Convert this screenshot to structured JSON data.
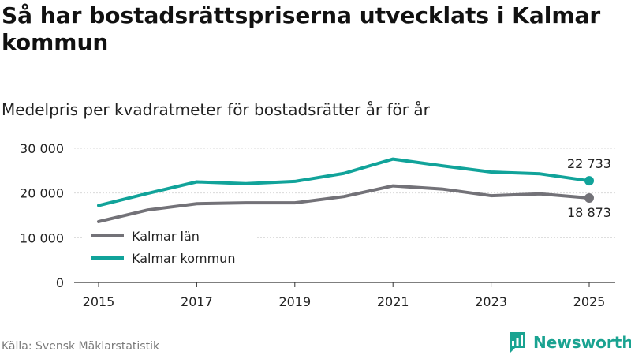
{
  "header": {
    "title": "Så har bostadsrättspriserna utvecklats i Kalmar kommun",
    "subtitle": "Medelpris per kvadratmeter för bostadsrätter år för år"
  },
  "footer": {
    "source": "Källa: Svensk Mäklarstatistik",
    "brand": "Newsworthy",
    "brand_icon": "bar-chart-speech-bubble-icon"
  },
  "colors": {
    "kalmar_lan": "#737278",
    "kalmar_kommun": "#11a39a",
    "grid": "#d9d9d9",
    "text": "#222222"
  },
  "chart_data": {
    "type": "line",
    "title": "Så har bostadsrättspriserna utvecklats i Kalmar kommun",
    "subtitle": "Medelpris per kvadratmeter för bostadsrätter år för år",
    "xlabel": "",
    "ylabel": "",
    "x": [
      2015,
      2016,
      2017,
      2018,
      2019,
      2020,
      2021,
      2022,
      2023,
      2024,
      2025
    ],
    "xlim": [
      2015,
      2025
    ],
    "ylim": [
      0,
      30000
    ],
    "y_ticks": [
      0,
      10000,
      20000,
      30000
    ],
    "y_tick_labels": [
      "0",
      "10 000",
      "20 000",
      "30 000"
    ],
    "x_ticks": [
      2015,
      2017,
      2019,
      2021,
      2023,
      2025
    ],
    "x_tick_labels": [
      "2015",
      "2017",
      "2019",
      "2021",
      "2023",
      "2025"
    ],
    "grid": true,
    "legend_position": "bottom-left",
    "series": [
      {
        "name": "Kalmar län",
        "color": "#737278",
        "values": [
          13600,
          16200,
          17600,
          17800,
          17800,
          19200,
          21600,
          20900,
          19400,
          19800,
          18873
        ],
        "end_label": "18 873"
      },
      {
        "name": "Kalmar kommun",
        "color": "#11a39a",
        "values": [
          17200,
          19900,
          22500,
          22100,
          22600,
          24400,
          27600,
          26100,
          24700,
          24300,
          22733
        ],
        "end_label": "22 733"
      }
    ]
  }
}
